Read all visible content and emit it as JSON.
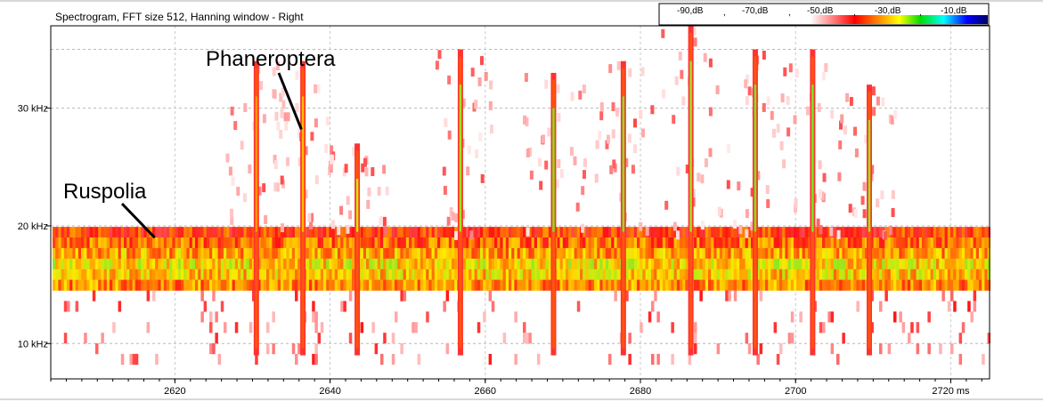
{
  "chart_data": {
    "type": "heatmap",
    "title": "Spectrogram, FFT size 512, Hanning window - Right",
    "x_unit": "ms",
    "xlim": [
      2604,
      2725
    ],
    "ylim": [
      7,
      37
    ],
    "x_ticks": [
      {
        "value": 2620,
        "label": "2620"
      },
      {
        "value": 2640,
        "label": "2640"
      },
      {
        "value": 2660,
        "label": "2660"
      },
      {
        "value": 2680,
        "label": "2680"
      },
      {
        "value": 2700,
        "label": "2700"
      },
      {
        "value": 2720,
        "label": "2720 ms"
      }
    ],
    "y_ticks": [
      {
        "value": 10,
        "label": "10 kHz"
      },
      {
        "value": 20,
        "label": "20 kHz"
      },
      {
        "value": 30,
        "label": "30 kHz"
      }
    ],
    "grid": true,
    "colorbar": {
      "placement": "top-right",
      "labels": [
        "-90,dB",
        "-70,dB",
        "-50,dB",
        "-30,dB",
        "-10,dB"
      ],
      "separators": [
        ",",
        ",",
        ",",
        ","
      ],
      "colors": [
        "#ffffff",
        "#ff0000",
        "#ffff00",
        "#00dd00",
        "#00ffff",
        "#0000ff",
        "#000066"
      ]
    },
    "band": {
      "center_khz": 16.5,
      "low_khz": 14.5,
      "high_khz": 19.5,
      "x_start": 2604,
      "x_end": 2725
    },
    "pulses": [
      {
        "time": 2630.5,
        "top_khz": 34,
        "peak": -45
      },
      {
        "time": 2636.5,
        "top_khz": 34,
        "peak": -42
      },
      {
        "time": 2643.5,
        "top_khz": 27,
        "peak": -35
      },
      {
        "time": 2656.8,
        "top_khz": 35,
        "peak": -32
      },
      {
        "time": 2668.8,
        "top_khz": 33,
        "peak": -30
      },
      {
        "time": 2677.8,
        "top_khz": 34,
        "peak": -30
      },
      {
        "time": 2686.5,
        "top_khz": 37,
        "peak": -32
      },
      {
        "time": 2694.8,
        "top_khz": 35,
        "peak": -30
      },
      {
        "time": 2702.2,
        "top_khz": 35,
        "peak": -30
      },
      {
        "time": 2709.5,
        "top_khz": 32,
        "peak": -32
      }
    ],
    "annotations": [
      {
        "text": "Phaneroptera",
        "target_time": 2636.3,
        "target_khz": 28.2
      },
      {
        "text": "Ruspolia",
        "target_time": 2617.4,
        "target_khz": 19.0
      }
    ]
  }
}
